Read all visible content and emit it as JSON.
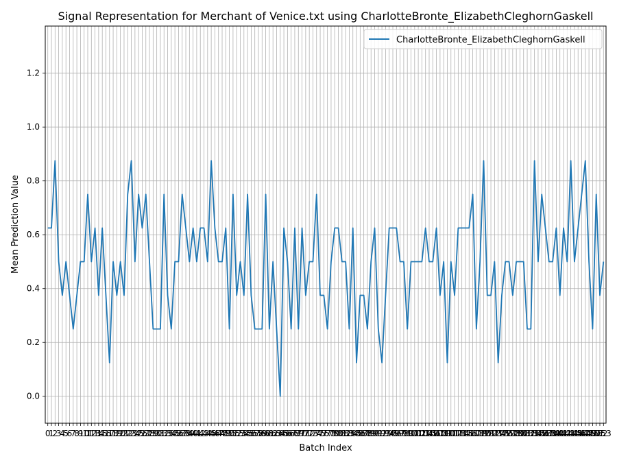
{
  "chart_data": {
    "type": "line",
    "title": "Signal Representation for Merchant of Venice.txt using CharlotteBronte_ElizabethCleghornGaskell",
    "xlabel": "Batch Index",
    "ylabel": "Mean Prediction Value",
    "ylim": [
      -0.1,
      1.375
    ],
    "yticks": [
      0.0,
      0.2,
      0.4,
      0.6,
      0.8,
      1.0,
      1.2
    ],
    "ytick_labels": [
      "0.0",
      "0.2",
      "0.4",
      "0.6",
      "0.8",
      "1.0",
      "1.2"
    ],
    "xlim": [
      -0.7,
      153.7
    ],
    "x_start": 0,
    "x_end": 153,
    "grid": true,
    "legend_position": "top-right",
    "colors": {
      "series": "#1f77b4",
      "grid": "#b0b0b0"
    },
    "series": [
      {
        "name": "CharlotteBronte_ElizabethCleghornGaskell",
        "values": [
          0.625,
          0.625,
          0.875,
          0.5,
          0.375,
          0.5,
          0.375,
          0.25,
          0.375,
          0.5,
          0.5,
          0.75,
          0.5,
          0.625,
          0.375,
          0.625,
          0.375,
          0.125,
          0.5,
          0.375,
          0.5,
          0.375,
          0.75,
          0.875,
          0.5,
          0.75,
          0.625,
          0.75,
          0.5,
          0.25,
          0.25,
          0.25,
          0.75,
          0.375,
          0.25,
          0.5,
          0.5,
          0.75,
          0.625,
          0.5,
          0.625,
          0.5,
          0.625,
          0.625,
          0.5,
          0.875,
          0.625,
          0.5,
          0.5,
          0.625,
          0.25,
          0.75,
          0.375,
          0.5,
          0.375,
          0.75,
          0.375,
          0.25,
          0.25,
          0.25,
          0.75,
          0.25,
          0.5,
          0.25,
          0.0,
          0.625,
          0.5,
          0.25,
          0.625,
          0.25,
          0.625,
          0.375,
          0.5,
          0.5,
          0.75,
          0.375,
          0.375,
          0.25,
          0.5,
          0.625,
          0.625,
          0.5,
          0.5,
          0.25,
          0.625,
          0.125,
          0.375,
          0.375,
          0.25,
          0.5,
          0.625,
          0.25,
          0.125,
          0.375,
          0.625,
          0.625,
          0.625,
          0.5,
          0.5,
          0.25,
          0.5,
          0.5,
          0.5,
          0.5,
          0.625,
          0.5,
          0.5,
          0.625,
          0.375,
          0.5,
          0.125,
          0.5,
          0.375,
          0.625,
          0.625,
          0.625,
          0.625,
          0.75,
          0.25,
          0.5,
          0.875,
          0.375,
          0.375,
          0.5,
          0.125,
          0.375,
          0.5,
          0.5,
          0.375,
          0.5,
          0.5,
          0.5,
          0.25,
          0.25,
          0.875,
          0.5,
          0.75,
          0.625,
          0.5,
          0.5,
          0.625,
          0.375,
          0.625,
          0.5,
          0.875,
          0.5,
          0.625,
          0.75,
          0.875,
          0.5,
          0.25,
          0.75,
          0.375,
          0.5
        ]
      }
    ]
  }
}
